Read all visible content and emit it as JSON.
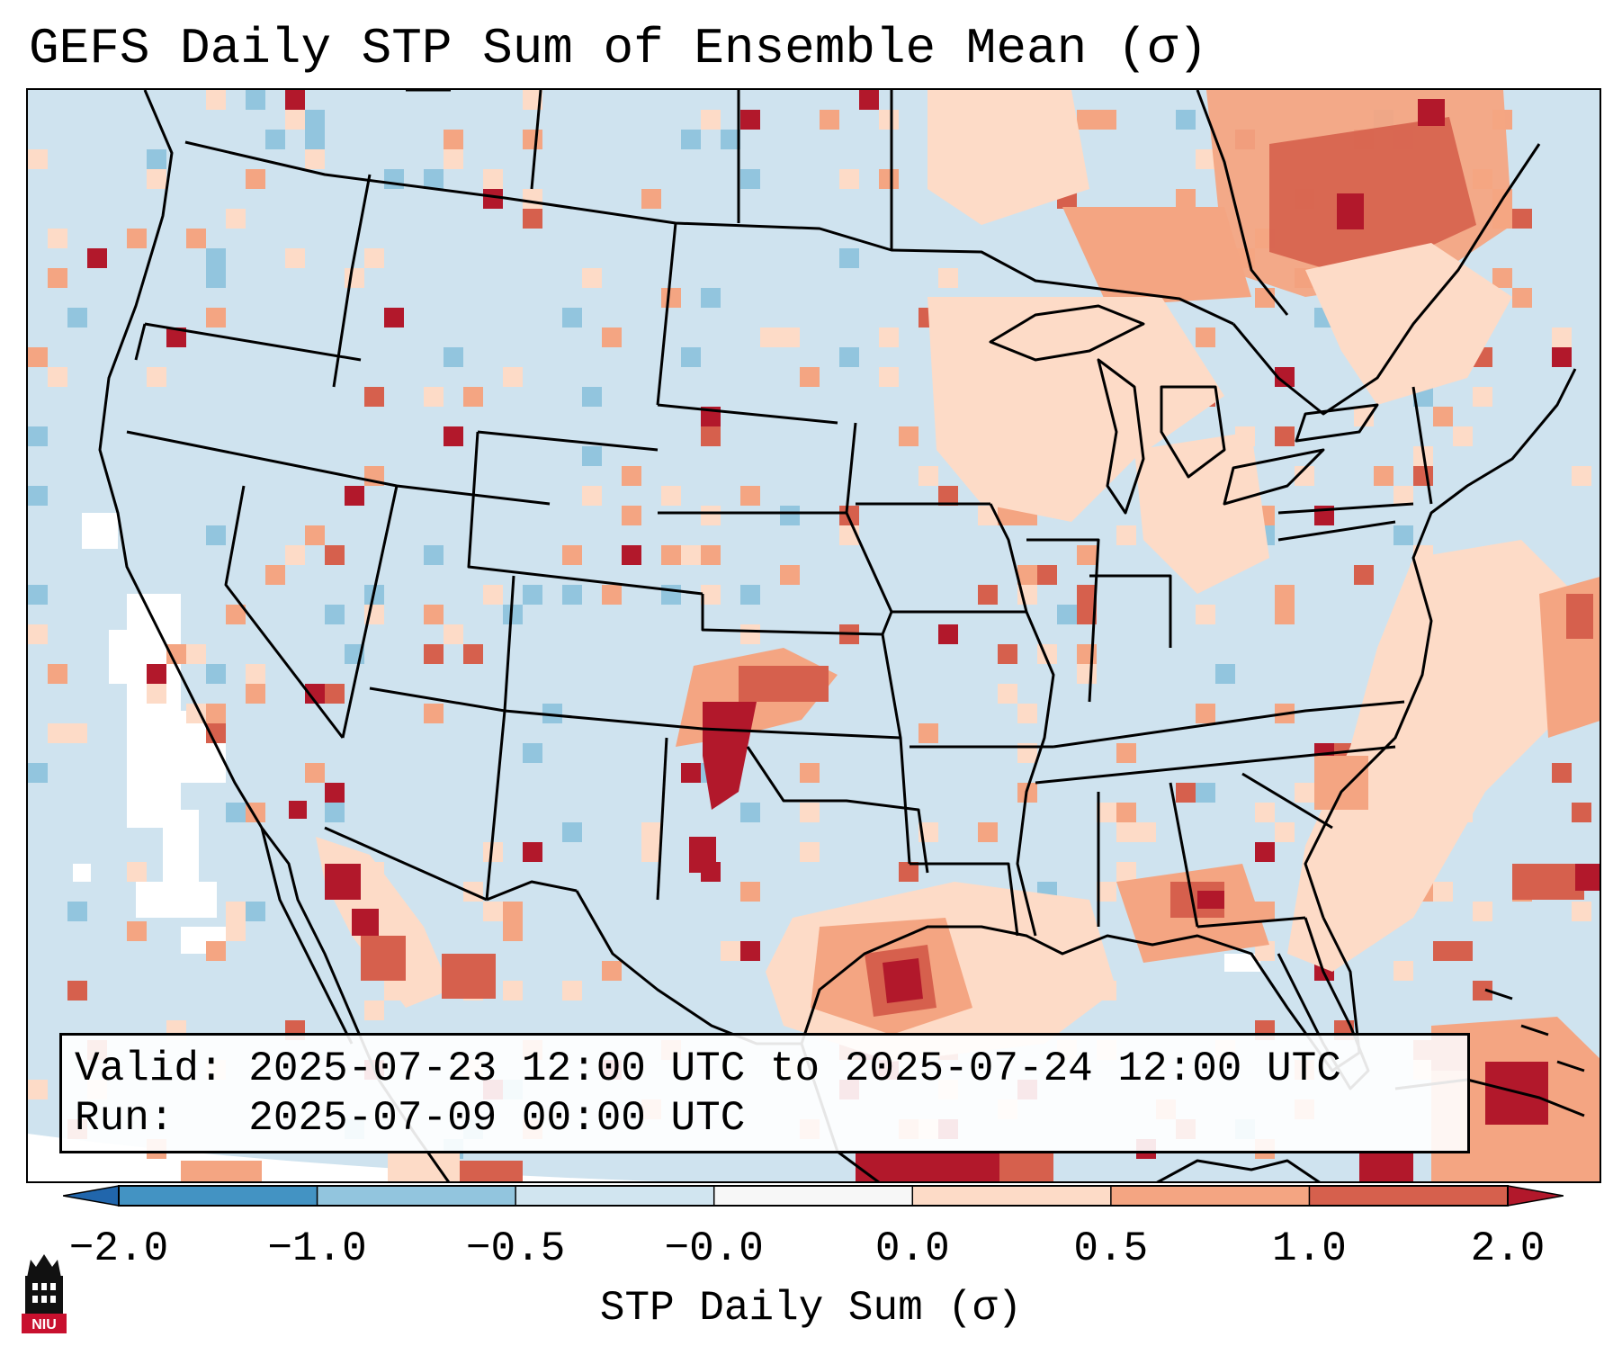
{
  "title": "GEFS Daily STP Sum of Ensemble Mean (σ)",
  "info": {
    "valid_line": "Valid: 2025-07-23 12:00 UTC to 2025-07-24 12:00 UTC",
    "run_line": "Run:   2025-07-09 00:00 UTC"
  },
  "colorbar": {
    "label": "STP Daily Sum (σ)",
    "ticks": [
      "−2.0",
      "−1.0",
      "−0.5",
      "−0.0",
      "0.0",
      "0.5",
      "1.0",
      "2.0"
    ],
    "bins": [
      {
        "range": "< -2.0",
        "color": "#2166ac"
      },
      {
        "range": "-2.0 to -1.0",
        "color": "#4393c3"
      },
      {
        "range": "-1.0 to -0.5",
        "color": "#92c5de"
      },
      {
        "range": "-0.5 to -0.0",
        "color": "#d1e5f0"
      },
      {
        "range": "-0.0 to 0.0",
        "color": "#f7f7f7"
      },
      {
        "range": "0.0 to 0.5",
        "color": "#fddbc7"
      },
      {
        "range": "0.5 to 1.0",
        "color": "#f4a582"
      },
      {
        "range": "1.0 to 2.0",
        "color": "#d6604d"
      },
      {
        "range": "> 2.0",
        "color": "#b2182b"
      }
    ]
  },
  "chart_data": {
    "type": "heatmap",
    "title": "GEFS Daily STP Sum of Ensemble Mean (σ)",
    "variable": "STP Daily Sum (σ)",
    "levels": [
      -2.0,
      -1.0,
      -0.5,
      -0.0,
      0.0,
      0.5,
      1.0,
      2.0
    ],
    "extend": "both",
    "colormap": "RdBu_r"
  },
  "logo": {
    "text": "NIU",
    "color": "#c8102e"
  }
}
